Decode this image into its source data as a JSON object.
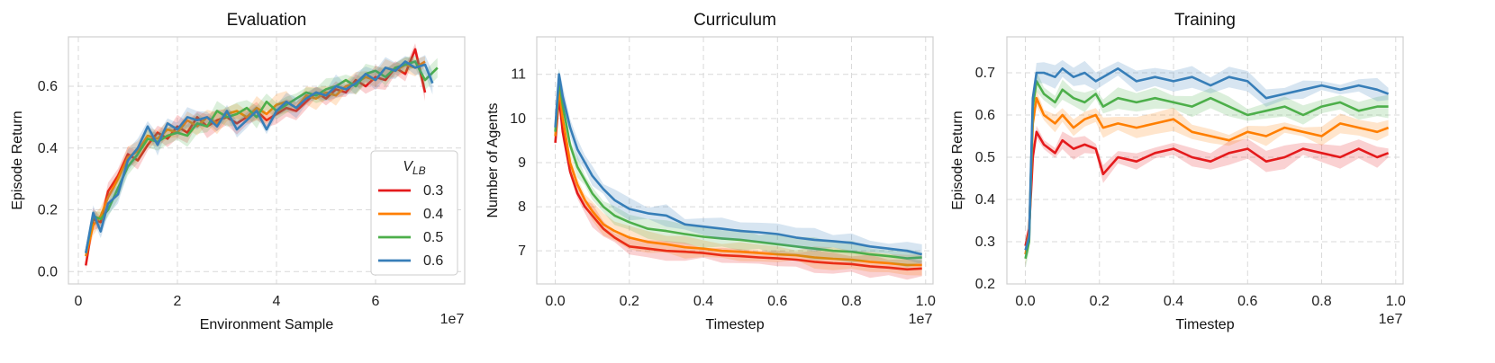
{
  "chart_data": [
    {
      "type": "line",
      "title": "Evaluation",
      "xlabel": "Environment Sample",
      "ylabel": "Episode Return",
      "x_multiplier": "1e7",
      "xlim": [
        -0.2,
        7.8
      ],
      "ylim": [
        -0.04,
        0.76
      ],
      "xticks": [
        "0",
        "2",
        "4",
        "6"
      ],
      "yticks": [
        "0.0",
        "0.2",
        "0.4",
        "0.6"
      ],
      "grid": true,
      "shaded_band": true,
      "legend": {
        "title": "V_LB",
        "position": "lower-right",
        "entries": [
          "0.3",
          "0.4",
          "0.5",
          "0.6"
        ]
      },
      "series": [
        {
          "name": "0.3",
          "color": "#e41a1c",
          "x": [
            0.15,
            0.3,
            0.45,
            0.6,
            0.8,
            1.0,
            1.2,
            1.4,
            1.6,
            1.8,
            2.0,
            2.2,
            2.4,
            2.6,
            2.8,
            3.0,
            3.2,
            3.4,
            3.6,
            3.8,
            4.0,
            4.2,
            4.4,
            4.6,
            4.8,
            5.0,
            5.2,
            5.4,
            5.6,
            5.8,
            6.0,
            6.2,
            6.4,
            6.6,
            6.8,
            7.0
          ],
          "values": [
            0.02,
            0.17,
            0.16,
            0.26,
            0.31,
            0.38,
            0.36,
            0.41,
            0.45,
            0.43,
            0.47,
            0.45,
            0.5,
            0.47,
            0.49,
            0.5,
            0.48,
            0.5,
            0.52,
            0.49,
            0.51,
            0.53,
            0.52,
            0.55,
            0.58,
            0.56,
            0.59,
            0.58,
            0.62,
            0.6,
            0.63,
            0.62,
            0.66,
            0.64,
            0.72,
            0.58
          ]
        },
        {
          "name": "0.4",
          "color": "#ff7f00",
          "x": [
            0.15,
            0.3,
            0.45,
            0.6,
            0.8,
            1.0,
            1.2,
            1.4,
            1.6,
            1.8,
            2.0,
            2.2,
            2.4,
            2.6,
            2.8,
            3.0,
            3.2,
            3.4,
            3.6,
            3.8,
            4.0,
            4.2,
            4.4,
            4.6,
            4.8,
            5.0,
            5.2,
            5.4,
            5.6,
            5.8,
            6.0,
            6.2,
            6.4,
            6.6,
            6.8,
            7.0
          ],
          "values": [
            0.05,
            0.15,
            0.18,
            0.24,
            0.3,
            0.37,
            0.39,
            0.44,
            0.43,
            0.46,
            0.45,
            0.49,
            0.47,
            0.5,
            0.48,
            0.51,
            0.52,
            0.5,
            0.53,
            0.51,
            0.54,
            0.55,
            0.53,
            0.57,
            0.56,
            0.58,
            0.57,
            0.6,
            0.61,
            0.63,
            0.62,
            0.66,
            0.65,
            0.67,
            0.66,
            0.68
          ]
        },
        {
          "name": "0.5",
          "color": "#4daf4a",
          "x": [
            0.15,
            0.3,
            0.45,
            0.6,
            0.8,
            1.0,
            1.2,
            1.4,
            1.6,
            1.8,
            2.0,
            2.2,
            2.4,
            2.6,
            2.8,
            3.0,
            3.2,
            3.4,
            3.6,
            3.8,
            4.0,
            4.2,
            4.4,
            4.6,
            4.8,
            5.0,
            5.2,
            5.4,
            5.6,
            5.8,
            6.0,
            6.2,
            6.4,
            6.6,
            6.8,
            7.0,
            7.25
          ],
          "values": [
            0.06,
            0.18,
            0.17,
            0.2,
            0.27,
            0.34,
            0.38,
            0.43,
            0.42,
            0.44,
            0.45,
            0.44,
            0.48,
            0.47,
            0.52,
            0.5,
            0.51,
            0.53,
            0.5,
            0.55,
            0.52,
            0.54,
            0.56,
            0.58,
            0.57,
            0.59,
            0.6,
            0.62,
            0.6,
            0.64,
            0.65,
            0.63,
            0.66,
            0.67,
            0.68,
            0.62,
            0.66
          ]
        },
        {
          "name": "0.6",
          "color": "#377eb8",
          "x": [
            0.15,
            0.3,
            0.45,
            0.6,
            0.8,
            1.0,
            1.2,
            1.4,
            1.6,
            1.8,
            2.0,
            2.2,
            2.4,
            2.6,
            2.8,
            3.0,
            3.2,
            3.4,
            3.6,
            3.8,
            4.0,
            4.2,
            4.4,
            4.6,
            4.8,
            5.0,
            5.2,
            5.4,
            5.6,
            5.8,
            6.0,
            6.2,
            6.4,
            6.6,
            6.8,
            7.0,
            7.15
          ],
          "values": [
            0.06,
            0.19,
            0.13,
            0.22,
            0.25,
            0.36,
            0.4,
            0.47,
            0.41,
            0.48,
            0.46,
            0.5,
            0.49,
            0.5,
            0.47,
            0.52,
            0.46,
            0.49,
            0.52,
            0.46,
            0.52,
            0.55,
            0.53,
            0.56,
            0.58,
            0.57,
            0.6,
            0.59,
            0.61,
            0.64,
            0.62,
            0.66,
            0.65,
            0.68,
            0.66,
            0.67,
            0.61
          ]
        }
      ]
    },
    {
      "type": "line",
      "title": "Curriculum",
      "xlabel": "Timestep",
      "ylabel": "Number of Agents",
      "x_multiplier": "1e7",
      "xlim": [
        -0.05,
        1.02
      ],
      "ylim": [
        6.25,
        11.85
      ],
      "xticks": [
        "0.0",
        "0.2",
        "0.4",
        "0.6",
        "0.8",
        "1.0"
      ],
      "yticks": [
        "7",
        "8",
        "9",
        "10",
        "11"
      ],
      "grid": true,
      "shaded_band": true,
      "series": [
        {
          "name": "0.3",
          "color": "#e41a1c",
          "x": [
            0.0,
            0.01,
            0.02,
            0.04,
            0.06,
            0.08,
            0.1,
            0.13,
            0.16,
            0.2,
            0.25,
            0.3,
            0.35,
            0.4,
            0.45,
            0.5,
            0.55,
            0.6,
            0.65,
            0.7,
            0.75,
            0.8,
            0.85,
            0.9,
            0.95,
            0.99
          ],
          "values": [
            9.45,
            10.5,
            9.7,
            8.8,
            8.3,
            8.0,
            7.8,
            7.5,
            7.3,
            7.1,
            7.05,
            7.0,
            6.98,
            6.95,
            6.9,
            6.88,
            6.85,
            6.83,
            6.8,
            6.75,
            6.72,
            6.7,
            6.65,
            6.62,
            6.58,
            6.6
          ]
        },
        {
          "name": "0.4",
          "color": "#ff7f00",
          "x": [
            0.0,
            0.01,
            0.02,
            0.04,
            0.06,
            0.08,
            0.1,
            0.13,
            0.16,
            0.2,
            0.25,
            0.3,
            0.35,
            0.4,
            0.45,
            0.5,
            0.55,
            0.6,
            0.65,
            0.7,
            0.75,
            0.8,
            0.85,
            0.9,
            0.95,
            0.99
          ],
          "values": [
            9.6,
            10.7,
            10.0,
            9.0,
            8.5,
            8.15,
            7.9,
            7.6,
            7.45,
            7.3,
            7.2,
            7.15,
            7.08,
            7.05,
            7.0,
            6.98,
            6.95,
            6.92,
            6.9,
            6.85,
            6.82,
            6.8,
            6.75,
            6.72,
            6.68,
            6.68
          ]
        },
        {
          "name": "0.5",
          "color": "#4daf4a",
          "x": [
            0.0,
            0.01,
            0.02,
            0.04,
            0.06,
            0.08,
            0.1,
            0.13,
            0.16,
            0.2,
            0.25,
            0.3,
            0.35,
            0.4,
            0.45,
            0.5,
            0.55,
            0.6,
            0.65,
            0.7,
            0.75,
            0.8,
            0.85,
            0.9,
            0.95,
            0.99
          ],
          "values": [
            9.7,
            10.9,
            10.3,
            9.4,
            8.9,
            8.6,
            8.3,
            8.0,
            7.8,
            7.65,
            7.5,
            7.45,
            7.38,
            7.32,
            7.28,
            7.25,
            7.2,
            7.15,
            7.1,
            7.05,
            7.0,
            6.98,
            6.92,
            6.88,
            6.83,
            6.85
          ]
        },
        {
          "name": "0.6",
          "color": "#377eb8",
          "x": [
            0.0,
            0.01,
            0.02,
            0.04,
            0.06,
            0.08,
            0.1,
            0.13,
            0.16,
            0.2,
            0.25,
            0.3,
            0.35,
            0.4,
            0.45,
            0.5,
            0.55,
            0.6,
            0.65,
            0.7,
            0.75,
            0.8,
            0.85,
            0.9,
            0.95,
            0.99
          ],
          "values": [
            9.8,
            11.0,
            10.5,
            9.8,
            9.3,
            9.0,
            8.7,
            8.4,
            8.15,
            7.95,
            7.85,
            7.8,
            7.6,
            7.55,
            7.5,
            7.45,
            7.42,
            7.38,
            7.3,
            7.25,
            7.22,
            7.18,
            7.1,
            7.05,
            7.0,
            6.92
          ]
        }
      ]
    },
    {
      "type": "line",
      "title": "Training",
      "xlabel": "Timestep",
      "ylabel": "Episode Return",
      "x_multiplier": "1e7",
      "xlim": [
        -0.05,
        1.02
      ],
      "ylim": [
        0.2,
        0.785
      ],
      "xticks": [
        "0.0",
        "0.2",
        "0.4",
        "0.6",
        "0.8",
        "1.0"
      ],
      "yticks": [
        "0.2",
        "0.3",
        "0.4",
        "0.5",
        "0.6",
        "0.7"
      ],
      "grid": true,
      "shaded_band": true,
      "series": [
        {
          "name": "0.3",
          "color": "#e41a1c",
          "x": [
            0.0,
            0.01,
            0.02,
            0.03,
            0.05,
            0.08,
            0.1,
            0.13,
            0.16,
            0.19,
            0.21,
            0.25,
            0.3,
            0.35,
            0.4,
            0.45,
            0.5,
            0.55,
            0.6,
            0.65,
            0.7,
            0.75,
            0.8,
            0.85,
            0.9,
            0.95,
            0.98
          ],
          "values": [
            0.29,
            0.33,
            0.5,
            0.56,
            0.53,
            0.51,
            0.54,
            0.52,
            0.53,
            0.52,
            0.46,
            0.5,
            0.49,
            0.51,
            0.52,
            0.5,
            0.49,
            0.51,
            0.52,
            0.49,
            0.5,
            0.52,
            0.51,
            0.5,
            0.52,
            0.5,
            0.51
          ]
        },
        {
          "name": "0.4",
          "color": "#ff7f00",
          "x": [
            0.0,
            0.01,
            0.02,
            0.03,
            0.05,
            0.08,
            0.1,
            0.13,
            0.16,
            0.19,
            0.21,
            0.25,
            0.3,
            0.35,
            0.4,
            0.45,
            0.5,
            0.55,
            0.6,
            0.65,
            0.7,
            0.75,
            0.8,
            0.85,
            0.9,
            0.95,
            0.98
          ],
          "values": [
            0.27,
            0.32,
            0.58,
            0.64,
            0.6,
            0.58,
            0.6,
            0.57,
            0.59,
            0.6,
            0.57,
            0.58,
            0.57,
            0.58,
            0.59,
            0.56,
            0.55,
            0.54,
            0.56,
            0.55,
            0.57,
            0.56,
            0.55,
            0.58,
            0.57,
            0.56,
            0.57
          ]
        },
        {
          "name": "0.5",
          "color": "#4daf4a",
          "x": [
            0.0,
            0.01,
            0.02,
            0.03,
            0.05,
            0.08,
            0.1,
            0.13,
            0.16,
            0.19,
            0.21,
            0.25,
            0.3,
            0.35,
            0.4,
            0.45,
            0.5,
            0.55,
            0.6,
            0.65,
            0.7,
            0.75,
            0.8,
            0.85,
            0.9,
            0.95,
            0.98
          ],
          "values": [
            0.26,
            0.3,
            0.62,
            0.68,
            0.65,
            0.63,
            0.66,
            0.64,
            0.63,
            0.65,
            0.62,
            0.64,
            0.63,
            0.64,
            0.63,
            0.62,
            0.64,
            0.62,
            0.6,
            0.61,
            0.62,
            0.6,
            0.62,
            0.63,
            0.61,
            0.62,
            0.62
          ]
        },
        {
          "name": "0.6",
          "color": "#377eb8",
          "x": [
            0.0,
            0.01,
            0.02,
            0.03,
            0.05,
            0.08,
            0.1,
            0.13,
            0.16,
            0.19,
            0.21,
            0.25,
            0.3,
            0.35,
            0.4,
            0.45,
            0.5,
            0.55,
            0.6,
            0.65,
            0.7,
            0.75,
            0.8,
            0.85,
            0.9,
            0.95,
            0.98
          ],
          "values": [
            0.28,
            0.31,
            0.64,
            0.7,
            0.7,
            0.69,
            0.71,
            0.69,
            0.7,
            0.68,
            0.69,
            0.71,
            0.68,
            0.69,
            0.68,
            0.69,
            0.67,
            0.69,
            0.68,
            0.64,
            0.65,
            0.66,
            0.67,
            0.66,
            0.67,
            0.66,
            0.65
          ]
        }
      ]
    }
  ]
}
